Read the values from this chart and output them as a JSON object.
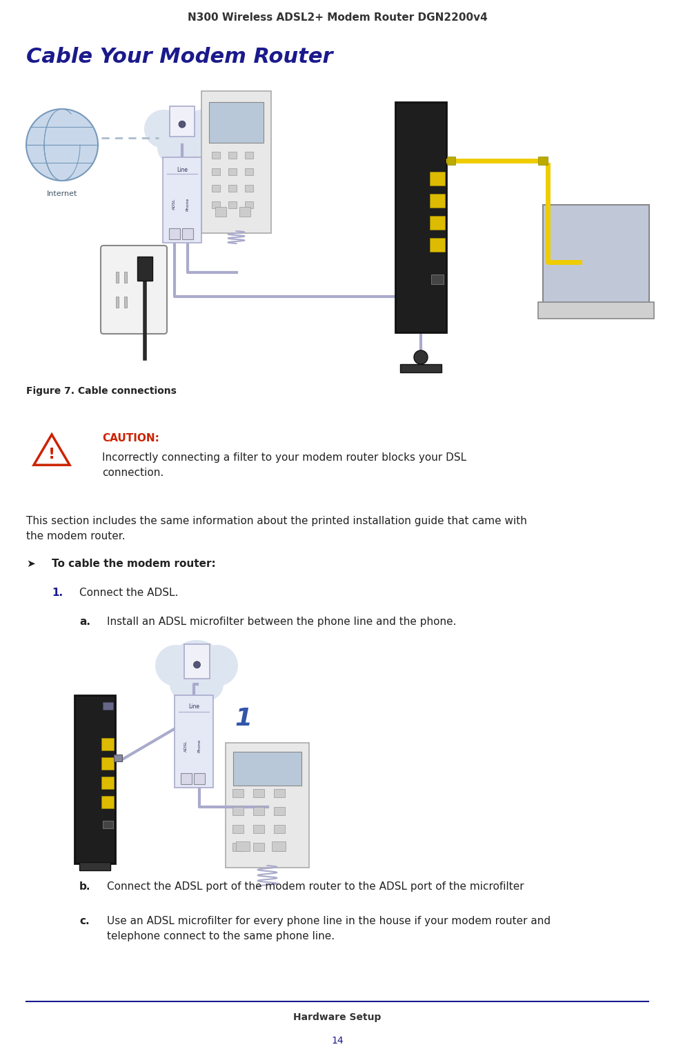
{
  "page_title": "N300 Wireless ADSL2+ Modem Router DGN2200v4",
  "section_title": "Cable Your Modem Router",
  "figure_caption": "Figure 7. Cable connections",
  "caution_label": "CAUTION:",
  "caution_text1": "Incorrectly connecting a filter to your modem router blocks your DSL",
  "caution_text2": "connection.",
  "intro_text1": "This section includes the same information about the printed installation guide that came with",
  "intro_text2": "the modem router.",
  "bold_instruction": "To cable the modem router:",
  "step1_label": "1.",
  "step1_text": "Connect the ADSL.",
  "step1a_label": "a.",
  "step1a_text": "Install an ADSL microfilter between the phone line and the phone.",
  "step1b_label": "b.",
  "step1b_text": "Connect the ADSL port of the modem router to the ADSL port of the microfilter",
  "step1c_label": "c.",
  "step1c_text1": "Use an ADSL microfilter for every phone line in the house if your modem router and",
  "step1c_text2": "telephone connect to the same phone line.",
  "footer_text": "Hardware Setup",
  "page_number": "14",
  "bg_color": "#ffffff",
  "title_color": "#1a1a8c",
  "header_text_color": "#333333",
  "footer_line_color": "#1a1a8c",
  "caution_color": "#cc2200",
  "body_text_color": "#222222",
  "page_title_fontsize": 11,
  "section_title_fontsize": 22,
  "body_fontsize": 11,
  "small_fontsize": 9,
  "footer_fontsize": 10
}
